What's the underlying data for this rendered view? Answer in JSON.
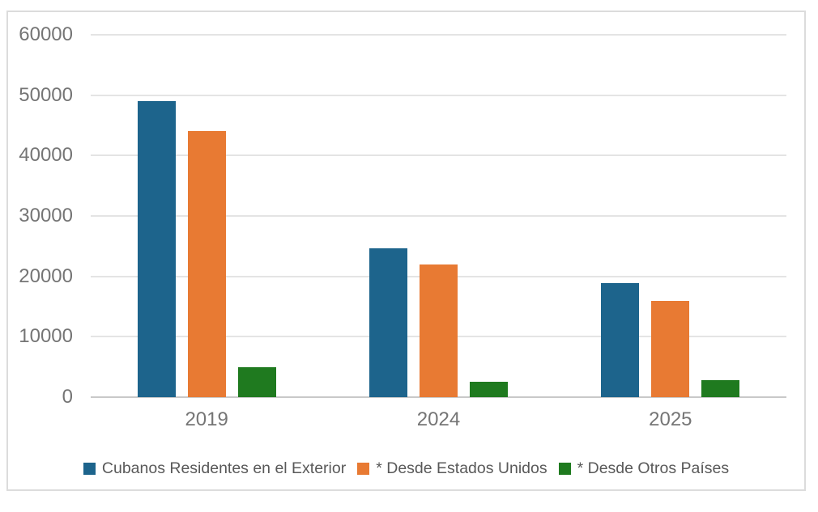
{
  "chart_data": {
    "type": "bar",
    "title": "",
    "xlabel": "",
    "ylabel": "",
    "categories": [
      "2019",
      "2024",
      "2025"
    ],
    "series": [
      {
        "name": "Cubanos Residentes en el Exterior",
        "color": "#1d648c",
        "values": [
          49000,
          24700,
          18900
        ]
      },
      {
        "name": "* Desde Estados Unidos",
        "color": "#e87a33",
        "values": [
          44100,
          22000,
          16000
        ]
      },
      {
        "name": "* Desde Otros Países",
        "color": "#1f7a1f",
        "values": [
          4900,
          2600,
          2800
        ]
      }
    ],
    "ylim": [
      0,
      60000
    ],
    "ytick_step": 10000,
    "ytick_labels": [
      "0",
      "10000",
      "20000",
      "30000",
      "40000",
      "50000",
      "60000"
    ],
    "grid": true,
    "legend_position": "bottom"
  },
  "colors": {
    "background": "#ffffff",
    "frame_border": "#dcdcdc",
    "gridline": "#e4e4e4",
    "baseline": "#c9c9c9",
    "axis_text": "#757575",
    "legend_text": "#595959"
  }
}
